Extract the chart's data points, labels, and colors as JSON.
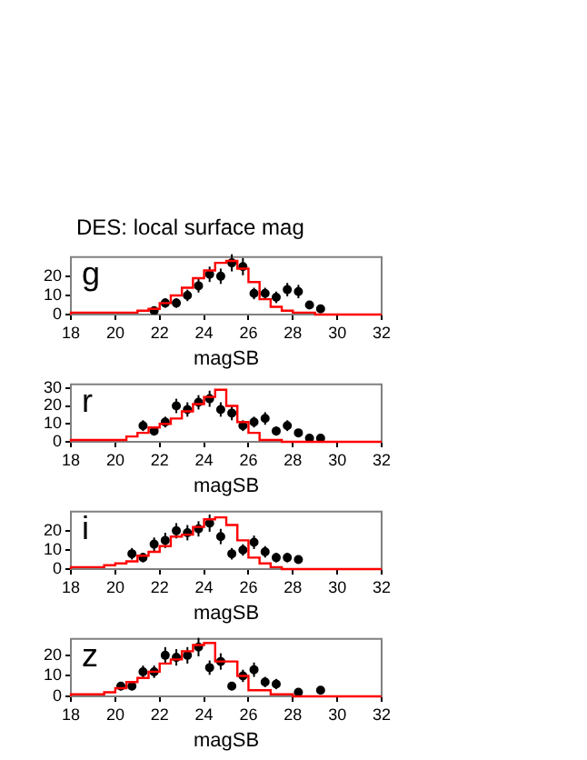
{
  "chart_data": [
    {
      "type": "scatter",
      "title": "DES: local surface mag",
      "xlabel": "magSB",
      "annotations": [
        "g"
      ],
      "xlim": [
        18,
        32
      ],
      "xticks": [
        18,
        20,
        22,
        24,
        26,
        28,
        30,
        32
      ],
      "ylim": [
        0,
        30
      ],
      "yticks": [
        0,
        10,
        20
      ],
      "series": [
        {
          "type": "step",
          "color": "#ff0000",
          "marker": "none",
          "x": [
            18,
            20,
            21,
            21.5,
            22,
            22.5,
            23,
            23.5,
            24,
            24.5,
            25,
            25.5,
            26,
            26.5,
            27,
            27.5,
            28,
            28.5,
            29,
            29.5,
            32
          ],
          "values": [
            0,
            1,
            1,
            2,
            3,
            6,
            10,
            14,
            19,
            23,
            27,
            28,
            24,
            17,
            8,
            4,
            2,
            1,
            1,
            0,
            0
          ]
        },
        {
          "type": "scatter",
          "color": "#000000",
          "marker": "circle",
          "x": [
            21.75,
            22.25,
            22.75,
            23.25,
            23.75,
            24.25,
            24.75,
            25.25,
            25.75,
            26.25,
            26.75,
            27.25,
            27.75,
            28.25,
            28.75,
            29.25
          ],
          "values": [
            2,
            6,
            6,
            10,
            15,
            21,
            20,
            27,
            25,
            11,
            11,
            9,
            13,
            12,
            5,
            3
          ],
          "errors": [
            1.5,
            2.5,
            2.5,
            3,
            3.5,
            4,
            4,
            4.5,
            4.5,
            3,
            3,
            3,
            3.5,
            3.5,
            2,
            2
          ]
        }
      ]
    },
    {
      "type": "scatter",
      "xlabel": "magSB",
      "annotations": [
        "r"
      ],
      "xlim": [
        18,
        32
      ],
      "xticks": [
        18,
        20,
        22,
        24,
        26,
        28,
        30,
        32
      ],
      "ylim": [
        0,
        32
      ],
      "yticks": [
        0,
        10,
        20,
        30
      ],
      "series": [
        {
          "type": "step",
          "color": "#ff0000",
          "marker": "none",
          "x": [
            18,
            20,
            20.5,
            21,
            21.5,
            22,
            22.5,
            23,
            23.5,
            24,
            24.5,
            25,
            25.5,
            26,
            26.5,
            27,
            27.5,
            28,
            32
          ],
          "values": [
            0,
            1,
            1,
            3,
            5,
            8,
            10,
            13,
            17,
            21,
            25,
            29,
            20,
            11,
            5,
            1,
            1,
            0,
            0
          ]
        },
        {
          "type": "scatter",
          "color": "#000000",
          "marker": "circle",
          "x": [
            21.25,
            21.75,
            22.25,
            22.75,
            23.25,
            23.75,
            24.25,
            24.75,
            25.25,
            25.75,
            26.25,
            26.75,
            27.25,
            27.75,
            28.25,
            28.75,
            29.25
          ],
          "values": [
            9,
            6,
            11,
            20,
            18,
            22,
            24,
            18,
            16,
            9,
            11,
            13,
            6,
            9,
            5,
            2,
            2
          ],
          "errors": [
            3,
            2.5,
            3,
            4,
            4,
            4,
            4.5,
            4,
            4,
            3,
            3,
            3.5,
            2.5,
            3,
            2,
            1.5,
            1.5
          ]
        }
      ]
    },
    {
      "type": "scatter",
      "xlabel": "magSB",
      "annotations": [
        "i"
      ],
      "xlim": [
        18,
        32
      ],
      "xticks": [
        18,
        20,
        22,
        24,
        26,
        28,
        30,
        32
      ],
      "ylim": [
        0,
        30
      ],
      "yticks": [
        0,
        10,
        20
      ],
      "series": [
        {
          "type": "step",
          "color": "#ff0000",
          "marker": "none",
          "x": [
            18,
            19.5,
            20,
            20.5,
            21,
            21.5,
            22,
            22.5,
            23,
            23.5,
            24,
            24.5,
            25,
            25.5,
            26,
            26.5,
            27,
            27.5,
            28,
            32
          ],
          "values": [
            0,
            1,
            2,
            3,
            4,
            7,
            9,
            12,
            17,
            18,
            22,
            26,
            27,
            23,
            15,
            6,
            3,
            1,
            0,
            0
          ]
        },
        {
          "type": "scatter",
          "color": "#000000",
          "marker": "circle",
          "x": [
            20.75,
            21.25,
            21.75,
            22.25,
            22.75,
            23.25,
            23.75,
            24.25,
            24.75,
            25.25,
            25.75,
            26.25,
            26.75,
            27.25,
            27.75,
            28.25
          ],
          "values": [
            8,
            6,
            13,
            15,
            20,
            19,
            21,
            24,
            17,
            8,
            10,
            14,
            9,
            6,
            6,
            5
          ],
          "errors": [
            3,
            2.5,
            3.5,
            4,
            4,
            4,
            4,
            4.5,
            4,
            3,
            3,
            3.5,
            3,
            2.5,
            2.5,
            2
          ]
        }
      ]
    },
    {
      "type": "scatter",
      "xlabel": "magSB",
      "annotations": [
        "z"
      ],
      "xlim": [
        18,
        32
      ],
      "xticks": [
        18,
        20,
        22,
        24,
        26,
        28,
        30,
        32
      ],
      "ylim": [
        0,
        28
      ],
      "yticks": [
        0,
        10,
        20
      ],
      "series": [
        {
          "type": "step",
          "color": "#ff0000",
          "marker": "none",
          "x": [
            18,
            19.5,
            20,
            20.5,
            21,
            21.5,
            22,
            22.5,
            23,
            23.5,
            24,
            24.5,
            25,
            25.5,
            26,
            26.5,
            27,
            27.5,
            28,
            28.5,
            32
          ],
          "values": [
            0,
            1,
            2,
            4,
            7,
            9,
            12,
            16,
            18,
            22,
            25,
            26,
            17,
            17,
            10,
            3,
            3,
            1,
            1,
            0,
            0
          ]
        },
        {
          "type": "scatter",
          "color": "#000000",
          "marker": "circle",
          "x": [
            20.25,
            20.75,
            21.25,
            21.75,
            22.25,
            22.75,
            23.25,
            23.75,
            24.25,
            24.75,
            25.25,
            25.75,
            26.25,
            26.75,
            27.25,
            28.25,
            29.25
          ],
          "values": [
            5,
            5,
            12,
            12,
            20,
            19,
            20,
            24,
            14,
            17,
            5,
            10,
            13,
            7,
            6,
            2,
            3
          ],
          "errors": [
            2,
            2,
            3,
            3,
            4,
            4,
            4,
            4.5,
            3.5,
            4,
            2,
            3,
            3.5,
            2.5,
            2.5,
            1.5,
            1.5
          ]
        }
      ]
    }
  ]
}
